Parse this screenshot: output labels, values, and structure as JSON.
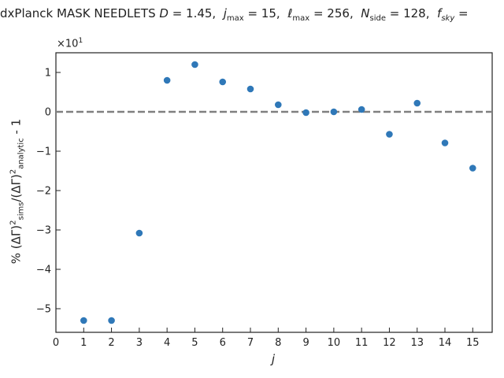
{
  "chart_data": {
    "type": "scatter",
    "title": "dxPlanck MASK NEEDLETS D = 1.45, j_max = 15, ℓ_max = 256, N_side = 128, f_sky =",
    "xlabel": "j",
    "ylabel": "% (ΔΓ)²_sims/(ΔΓ)²_analytic - 1",
    "y_multiplier": "×10¹",
    "xlim": [
      0,
      15.7
    ],
    "ylim": [
      -5.6,
      1.5
    ],
    "x_ticks": [
      0,
      1,
      2,
      3,
      4,
      5,
      6,
      7,
      8,
      9,
      10,
      11,
      12,
      13,
      14,
      15
    ],
    "y_ticks": [
      -5,
      -4,
      -3,
      -2,
      -1,
      0,
      1
    ],
    "y_tick_labels": [
      "−5",
      "−4",
      "−3",
      "−2",
      "−1",
      "0",
      "1"
    ],
    "reference_line": {
      "y": 0,
      "style": "dashed",
      "color": "#808080"
    },
    "point_color": "#2f78b8",
    "series": [
      {
        "x": [
          1,
          2,
          3,
          4,
          5,
          6,
          7,
          8,
          9,
          10,
          11,
          12,
          13,
          14,
          15
        ],
        "y": [
          -5.3,
          -5.3,
          -3.08,
          0.8,
          1.2,
          0.76,
          0.58,
          0.18,
          -0.02,
          0.0,
          0.06,
          -0.57,
          0.22,
          -0.79,
          -1.43
        ]
      }
    ]
  }
}
